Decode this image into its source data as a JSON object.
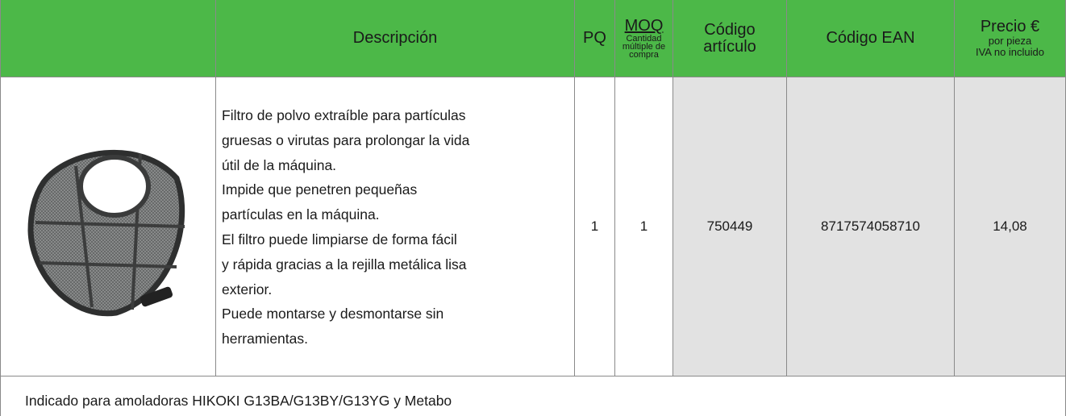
{
  "header": {
    "description": "Descripción",
    "pq": "PQ",
    "moq": {
      "title": "MOQ",
      "sub": [
        "Cantidad",
        "múltiple de",
        "compra"
      ]
    },
    "article_code": [
      "Código",
      "artículo"
    ],
    "ean": "Código EAN",
    "price": {
      "title": "Precio €",
      "sub": [
        "por pieza",
        "IVA no incluido"
      ]
    }
  },
  "row": {
    "description": [
      "Filtro de polvo extraíble para partículas",
      "gruesas o virutas para prolongar la vida",
      "útil de la máquina.",
      "Impide que penetren pequeñas",
      "partículas en la máquina.",
      "El filtro puede limpiarse de forma fácil",
      "y rápida gracias a la rejilla metálica lisa",
      "exterior.",
      "Puede montarse y desmontarse sin",
      "herramientas."
    ],
    "pq": "1",
    "moq": "1",
    "article_code": "750449",
    "ean": "8717574058710",
    "price": "14,08"
  },
  "footer": "Indicado para amoladoras HIKOKI G13BA/G13BY/G13YG y Metabo"
}
